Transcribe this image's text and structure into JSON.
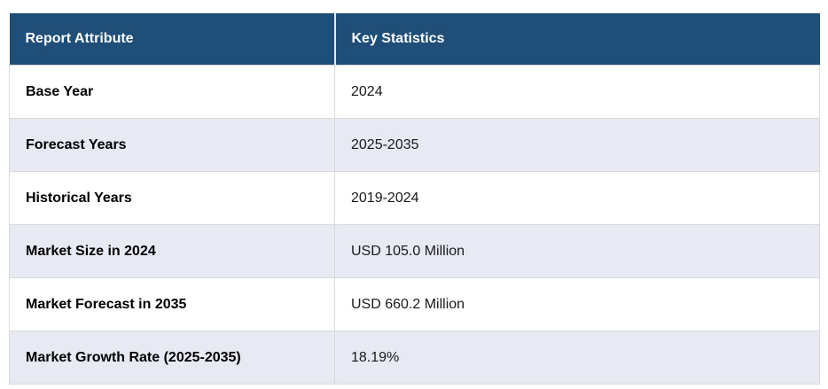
{
  "chart_data": {
    "type": "table",
    "columns": [
      "Report Attribute",
      "Key Statistics"
    ],
    "rows": [
      [
        "Base Year",
        "2024"
      ],
      [
        "Forecast Years",
        "2025-2035"
      ],
      [
        "Historical Years",
        "2019-2024"
      ],
      [
        "Market Size in 2024",
        "USD 105.0 Million"
      ],
      [
        "Market Forecast in 2035",
        "USD 660.2 Million"
      ],
      [
        "Market Growth Rate (2025-2035)",
        "18.19%"
      ]
    ],
    "layout": {
      "legend": "none",
      "grid": "cell-borders",
      "row_striping": "even rows shaded"
    }
  },
  "colors": {
    "header_bg": "#1f4e79",
    "header_text": "#ffffff",
    "row_bg": "#ffffff",
    "row_alt_bg": "#e7e9f3",
    "border": "#d9d9d9"
  }
}
